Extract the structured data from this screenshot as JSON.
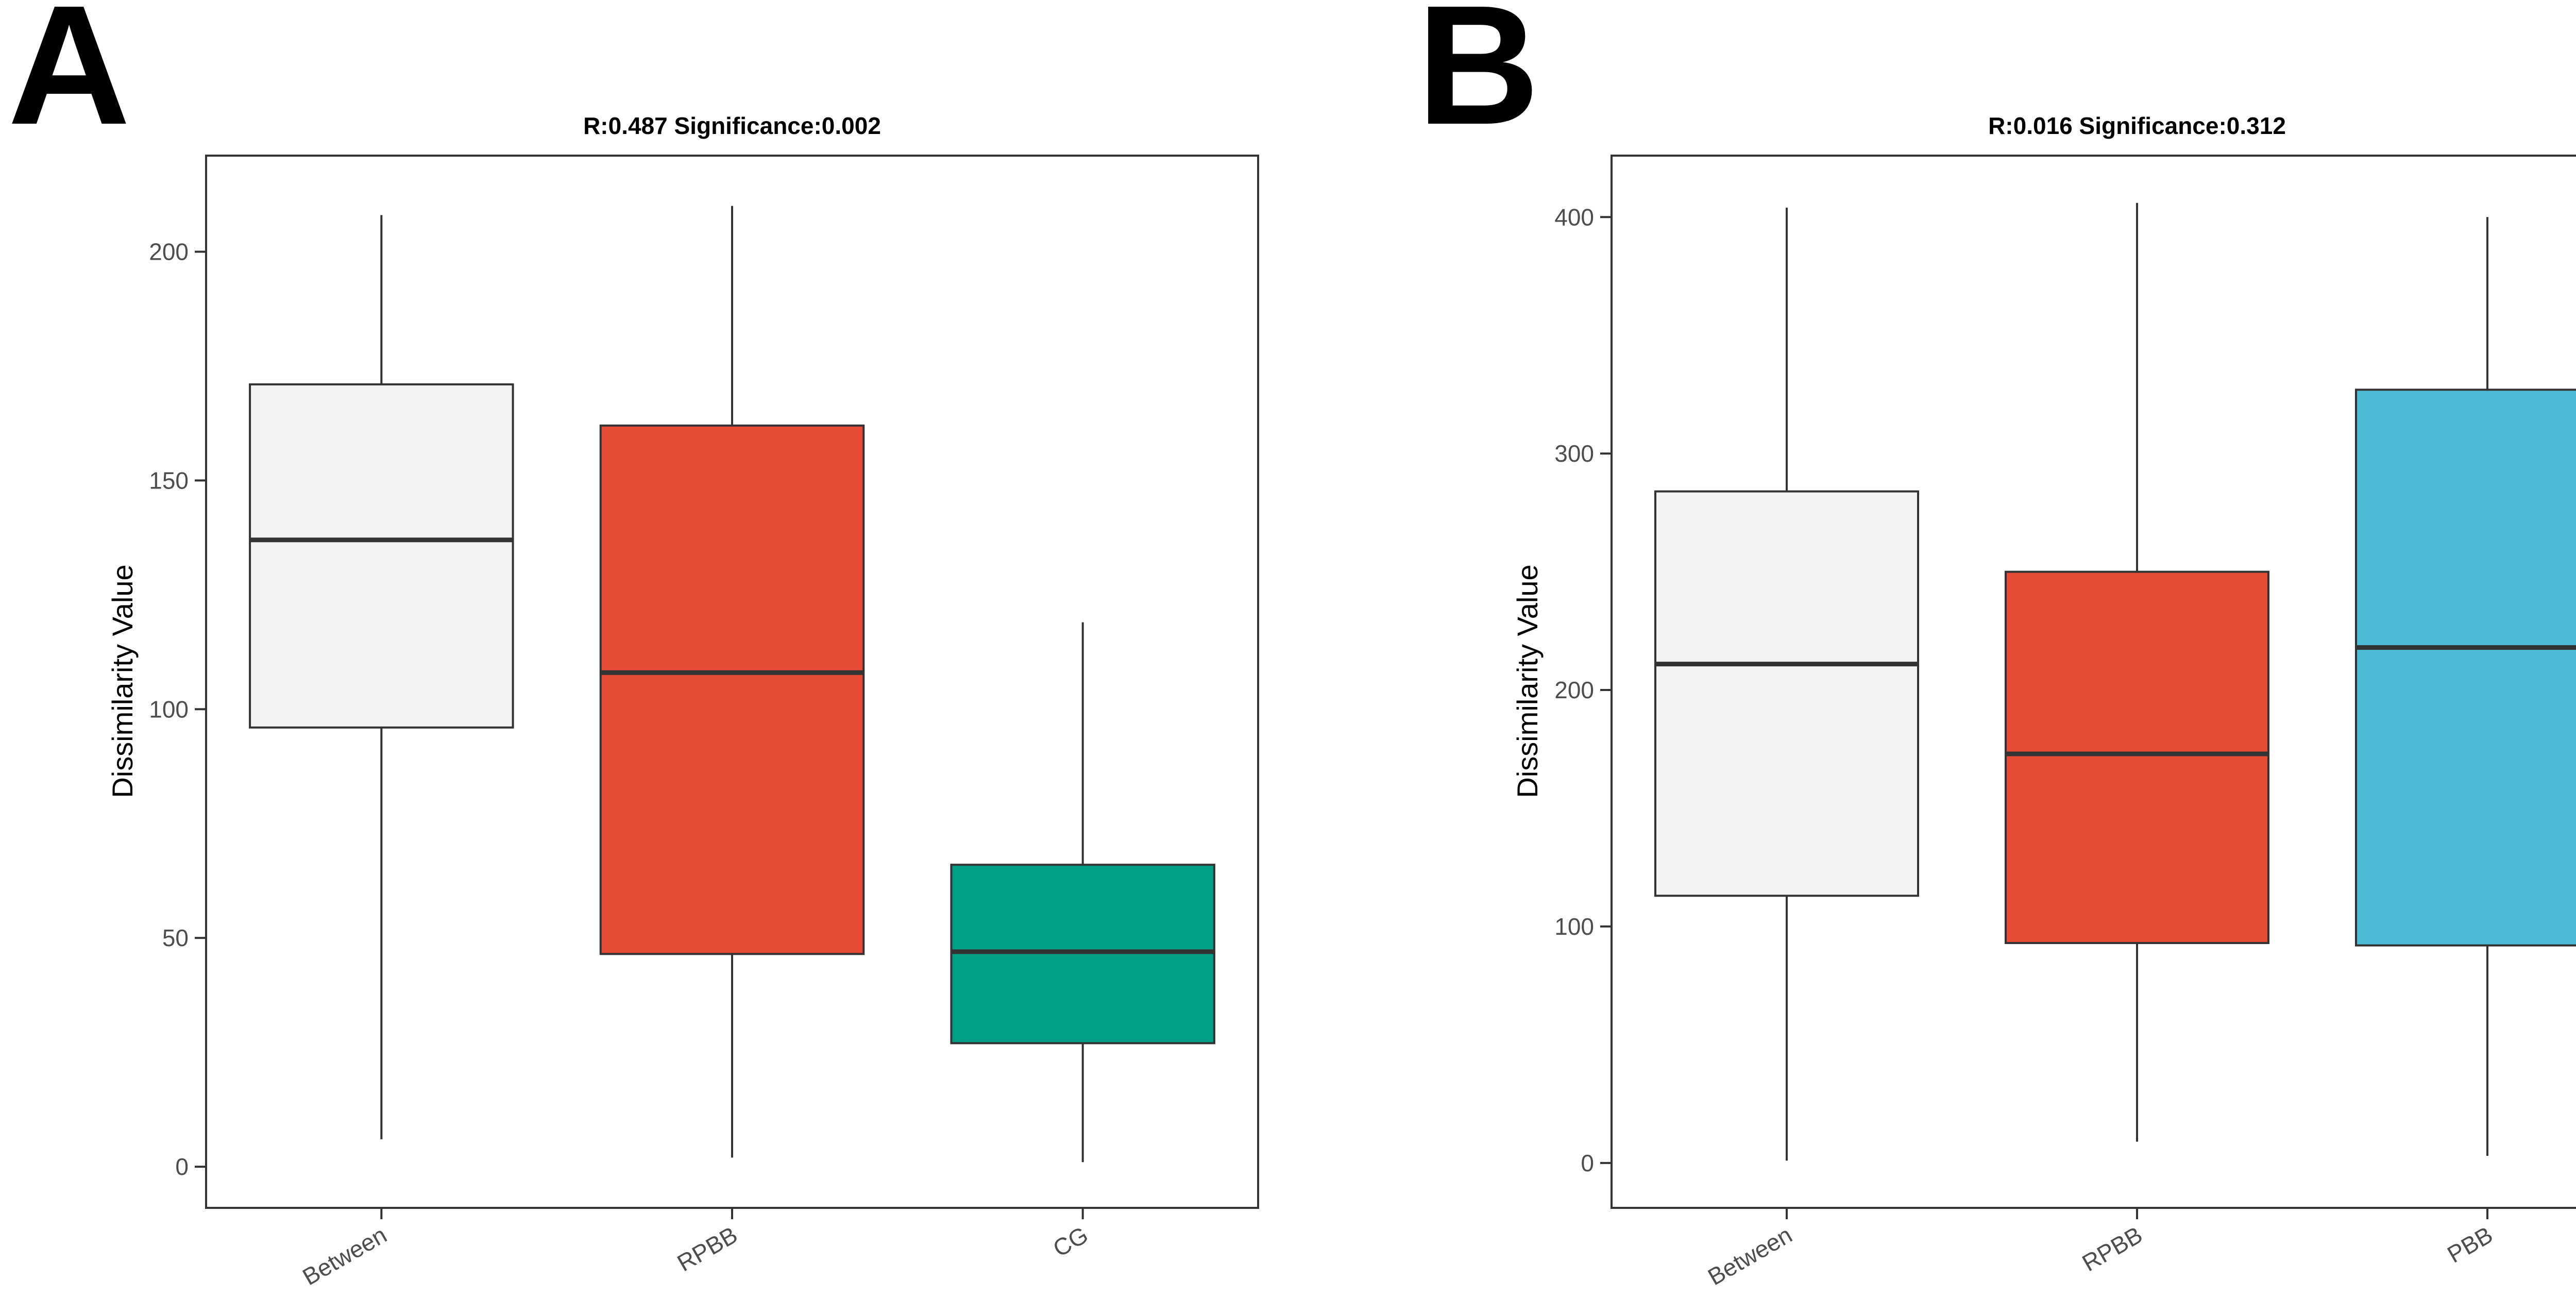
{
  "panels": [
    {
      "label": "A",
      "title": "R:0.487   Significance:0.002"
    },
    {
      "label": "B",
      "title": "R:0.016   Significance:0.312"
    }
  ],
  "chart_data": [
    {
      "type": "box",
      "title": "R:0.487   Significance:0.002",
      "xlabel": "",
      "ylabel": "Dissimilarity Value",
      "ylim": [
        -9,
        221
      ],
      "yticks": [
        0,
        50,
        100,
        150,
        200
      ],
      "grid": false,
      "legend": "none",
      "categories": [
        "Between",
        "RPBB",
        "CG"
      ],
      "boxes": [
        {
          "category": "Between",
          "min": 6,
          "q1": 96,
          "median": 137,
          "q3": 171,
          "max": 208,
          "color": "#F2F2F2"
        },
        {
          "category": "RPBB",
          "min": 2,
          "q1": 46.5,
          "median": 108,
          "q3": 162,
          "max": 210,
          "color": "#E64B35"
        },
        {
          "category": "CG",
          "min": 1,
          "q1": 27,
          "median": 47,
          "q3": 66,
          "max": 119,
          "color": "#00A087"
        }
      ]
    },
    {
      "type": "box",
      "title": "R:0.016   Significance:0.312",
      "xlabel": "",
      "ylabel": "Dissimilarity Value",
      "ylim": [
        -19,
        426
      ],
      "yticks": [
        0,
        100,
        200,
        300,
        400
      ],
      "grid": false,
      "legend": "none",
      "categories": [
        "Between",
        "RPBB",
        "PBB"
      ],
      "boxes": [
        {
          "category": "Between",
          "min": 1,
          "q1": 113,
          "median": 211,
          "q3": 284,
          "max": 404,
          "color": "#F2F2F2"
        },
        {
          "category": "RPBB",
          "min": 9,
          "q1": 93,
          "median": 173,
          "q3": 250,
          "max": 406,
          "color": "#E64B35"
        },
        {
          "category": "PBB",
          "min": 3,
          "q1": 92,
          "median": 218,
          "q3": 327,
          "max": 400,
          "color": "#4DBBD5"
        }
      ]
    }
  ]
}
